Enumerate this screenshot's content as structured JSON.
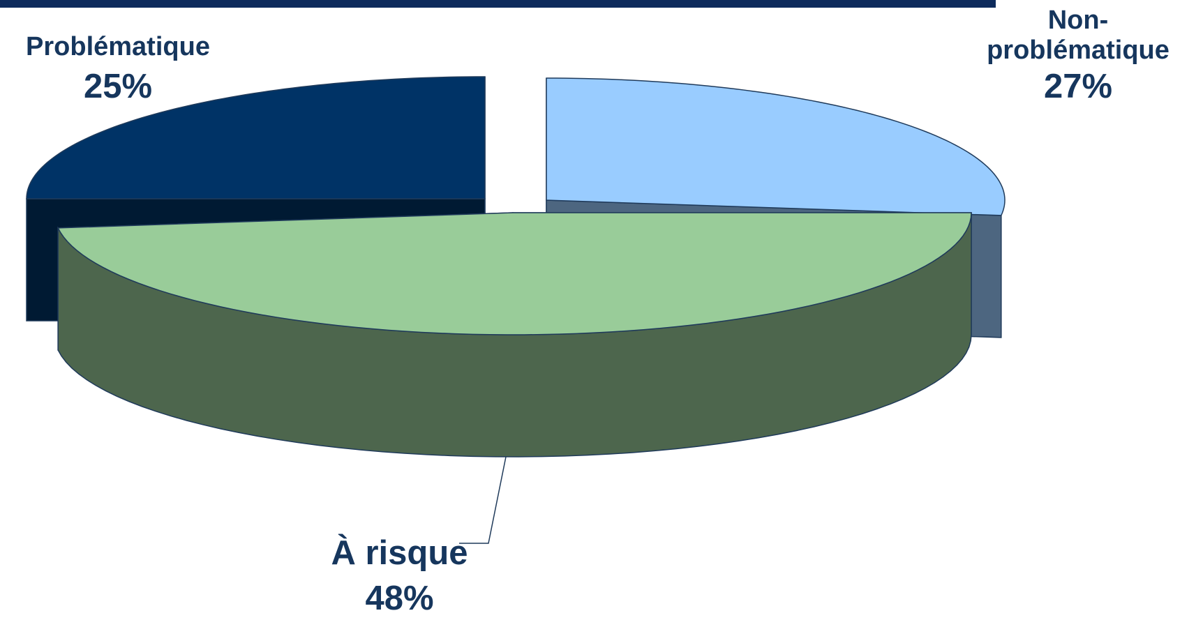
{
  "colors": {
    "top_bar": "#0e2b5c",
    "label_text": "#16365d",
    "outline": "#1f3a5a",
    "problematique_top": "#003366",
    "problematique_side": "#001a33",
    "non_problematique_top": "#99ccff",
    "non_problematique_side": "#4d6680",
    "a_risque_top": "#99cc99",
    "a_risque_side": "#4d664d"
  },
  "chart_data": {
    "type": "pie",
    "title": "",
    "three_d": true,
    "exploded": true,
    "slices": [
      {
        "label": "Problématique",
        "value": 25,
        "value_label": "25%",
        "color": "#003366"
      },
      {
        "label": "Non-problématique",
        "value": 27,
        "value_label": "27%",
        "color": "#99ccff"
      },
      {
        "label": "À risque",
        "value": 48,
        "value_label": "48%",
        "color": "#99cc99"
      }
    ]
  }
}
